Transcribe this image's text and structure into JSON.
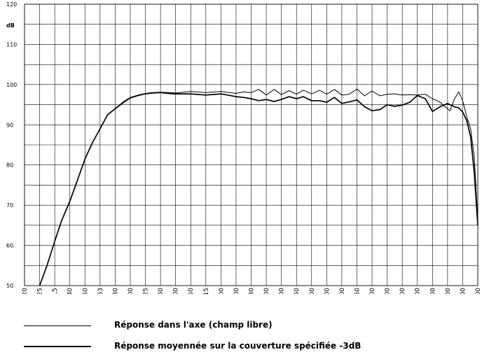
{
  "chart_data": {
    "type": "line",
    "unit_label": "dB",
    "ylim": [
      50,
      120
    ],
    "y_ticks": [
      50,
      60,
      70,
      80,
      90,
      100,
      110,
      120
    ],
    "y_tick_labels": [
      "50",
      "60",
      "70",
      "80",
      "90",
      "100",
      "110",
      "120"
    ],
    "x_scale": "log",
    "x_ticks": [
      20,
      25,
      31.5,
      40,
      50,
      63,
      80,
      100,
      125,
      160,
      200,
      250,
      315,
      400,
      500,
      630,
      800,
      1000,
      1250,
      1600,
      2000,
      2500,
      3150,
      4000,
      5000,
      6300,
      8000,
      10000,
      12500,
      16000,
      20000
    ],
    "x_tick_labels": [
      "20",
      "25",
      "31,5",
      "40",
      "50",
      "63",
      "80",
      "100",
      "125",
      "160",
      "200",
      "250",
      "315",
      "400",
      "500",
      "630",
      "800",
      "1000",
      "1250",
      "1600",
      "2000",
      "2500",
      "3150",
      "4000",
      "5000",
      "6300",
      "8000",
      "10000",
      "12500",
      "16000",
      "20000"
    ],
    "grid": true,
    "legend_position": "bottom",
    "series": [
      {
        "name": "Réponse dans l'axe (champ libre)",
        "color": "#000000",
        "x": [
          25,
          28,
          31.5,
          35,
          40,
          45,
          50,
          56,
          63,
          71,
          80,
          90,
          100,
          112,
          125,
          140,
          160,
          180,
          200,
          250,
          315,
          400,
          500,
          560,
          630,
          710,
          800,
          900,
          1000,
          1120,
          1250,
          1400,
          1600,
          1800,
          2000,
          2240,
          2500,
          2800,
          3150,
          3550,
          4000,
          4500,
          5000,
          5600,
          6300,
          7100,
          8000,
          9000,
          10000,
          11200,
          12500,
          13000,
          14000,
          15000,
          16000,
          17000,
          18000,
          19000,
          20000
        ],
        "y": [
          50,
          55,
          61,
          66,
          71,
          76.5,
          81.5,
          85.5,
          89,
          92.5,
          94,
          95.7,
          96.8,
          97.4,
          97.8,
          98,
          98.1,
          98,
          97.9,
          98.3,
          98,
          98.3,
          97.8,
          98.2,
          98,
          98.8,
          97.4,
          98.8,
          97.5,
          98.5,
          97.6,
          98.6,
          97.7,
          98.6,
          97.6,
          98.8,
          97.4,
          97.6,
          98.9,
          97.2,
          98.4,
          97.2,
          97.6,
          97.7,
          97.4,
          97.5,
          97.4,
          97.6,
          96.5,
          95.6,
          94,
          93.5,
          96.5,
          98.2,
          96,
          92,
          89,
          82,
          66
        ]
      },
      {
        "name": "Réponse moyennée sur la couverture spécifiée -3dB",
        "color": "#000000",
        "x": [
          25,
          28,
          31.5,
          35,
          40,
          45,
          50,
          56,
          63,
          71,
          80,
          90,
          100,
          112,
          125,
          140,
          160,
          180,
          200,
          250,
          315,
          400,
          500,
          560,
          630,
          710,
          800,
          900,
          1000,
          1120,
          1250,
          1400,
          1600,
          1800,
          2000,
          2240,
          2500,
          2800,
          3150,
          3550,
          4000,
          4500,
          5000,
          5600,
          6300,
          7100,
          8000,
          9000,
          10000,
          11200,
          12500,
          13000,
          14000,
          15000,
          16000,
          17000,
          18000,
          19000,
          20000
        ],
        "y": [
          50,
          55,
          61,
          66,
          71,
          76.5,
          81.5,
          85.5,
          89,
          92.5,
          94,
          95.5,
          96.7,
          97.3,
          97.7,
          97.9,
          98,
          97.8,
          97.7,
          97.7,
          97.4,
          97.7,
          97,
          96.8,
          96.5,
          96,
          96.3,
          95.8,
          96.3,
          97,
          96.5,
          97,
          96,
          96,
          95.6,
          96.8,
          95.3,
          95.7,
          96.2,
          94.5,
          93.5,
          93.8,
          95,
          94.6,
          94.9,
          95.6,
          97.3,
          96.5,
          93.3,
          94.5,
          95.3,
          95,
          94.5,
          94.2,
          93.2,
          91,
          87,
          78,
          65
        ]
      }
    ]
  }
}
